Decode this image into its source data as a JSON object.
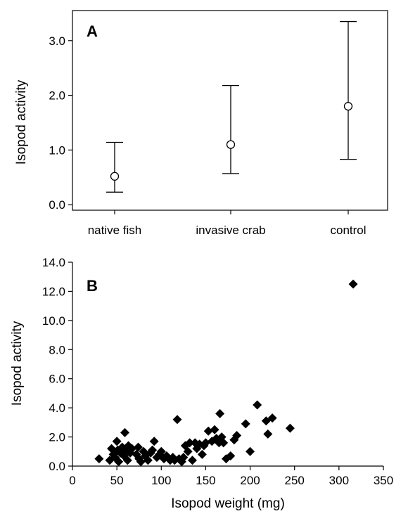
{
  "chart_data": [
    {
      "type": "scatter",
      "panel_label": "A",
      "title": "",
      "xlabel": "",
      "ylabel": "Isopod activity",
      "categories": [
        "native fish",
        "invasive crab",
        "control"
      ],
      "means": [
        0.52,
        1.1,
        1.8
      ],
      "error_low": [
        0.23,
        0.57,
        0.83
      ],
      "error_high": [
        1.14,
        2.18,
        3.35
      ],
      "ylim": [
        -0.1,
        3.55
      ],
      "yticks": [
        0.0,
        1.0,
        2.0,
        3.0
      ],
      "ytick_labels": [
        "0.0",
        "1.0",
        "2.0",
        "3.0"
      ],
      "grid": false,
      "legend": "none"
    },
    {
      "type": "scatter",
      "panel_label": "B",
      "title": "",
      "xlabel": "Isopod weight (mg)",
      "ylabel": "Isopod activity",
      "xlim": [
        0,
        350
      ],
      "ylim": [
        0,
        14
      ],
      "xticks": [
        0,
        50,
        100,
        150,
        200,
        250,
        300,
        350
      ],
      "xtick_labels": [
        "0",
        "50",
        "100",
        "150",
        "200",
        "250",
        "300",
        "350"
      ],
      "yticks": [
        0,
        2,
        4,
        6,
        8,
        10,
        12,
        14
      ],
      "ytick_labels": [
        "0.0",
        "2.0",
        "4.0",
        "6.0",
        "8.0",
        "10.0",
        "12.0",
        "14.0"
      ],
      "grid": false,
      "legend": "none",
      "points": [
        [
          30,
          0.5
        ],
        [
          42,
          0.4
        ],
        [
          44,
          1.2
        ],
        [
          46,
          0.8
        ],
        [
          48,
          0.6
        ],
        [
          50,
          1.7
        ],
        [
          51,
          1.1
        ],
        [
          52,
          0.3
        ],
        [
          54,
          0.9
        ],
        [
          56,
          1.3
        ],
        [
          58,
          0.7
        ],
        [
          59,
          2.3
        ],
        [
          60,
          1.0
        ],
        [
          62,
          0.4
        ],
        [
          63,
          1.4
        ],
        [
          65,
          0.9
        ],
        [
          67,
          1.2
        ],
        [
          72,
          0.8
        ],
        [
          74,
          1.3
        ],
        [
          75,
          0.5
        ],
        [
          77,
          0.3
        ],
        [
          80,
          1.0
        ],
        [
          82,
          0.7
        ],
        [
          85,
          0.4
        ],
        [
          88,
          0.9
        ],
        [
          90,
          1.1
        ],
        [
          92,
          1.7
        ],
        [
          95,
          0.6
        ],
        [
          98,
          0.8
        ],
        [
          100,
          1.0
        ],
        [
          103,
          0.5
        ],
        [
          106,
          0.7
        ],
        [
          110,
          0.4
        ],
        [
          113,
          0.6
        ],
        [
          115,
          0.4
        ],
        [
          118,
          3.2
        ],
        [
          120,
          0.5
        ],
        [
          123,
          0.3
        ],
        [
          125,
          0.6
        ],
        [
          127,
          1.4
        ],
        [
          130,
          1.0
        ],
        [
          132,
          1.6
        ],
        [
          135,
          0.4
        ],
        [
          138,
          1.6
        ],
        [
          140,
          1.2
        ],
        [
          143,
          1.5
        ],
        [
          146,
          0.8
        ],
        [
          148,
          1.4
        ],
        [
          150,
          1.6
        ],
        [
          153,
          2.4
        ],
        [
          157,
          1.7
        ],
        [
          160,
          2.5
        ],
        [
          162,
          1.9
        ],
        [
          165,
          1.6
        ],
        [
          166,
          3.6
        ],
        [
          168,
          2.0
        ],
        [
          170,
          1.6
        ],
        [
          173,
          0.5
        ],
        [
          178,
          0.7
        ],
        [
          182,
          1.8
        ],
        [
          185,
          2.1
        ],
        [
          195,
          2.9
        ],
        [
          200,
          1.0
        ],
        [
          208,
          4.2
        ],
        [
          218,
          3.1
        ],
        [
          220,
          2.2
        ],
        [
          225,
          3.3
        ],
        [
          245,
          2.6
        ],
        [
          316,
          12.5
        ]
      ]
    }
  ]
}
